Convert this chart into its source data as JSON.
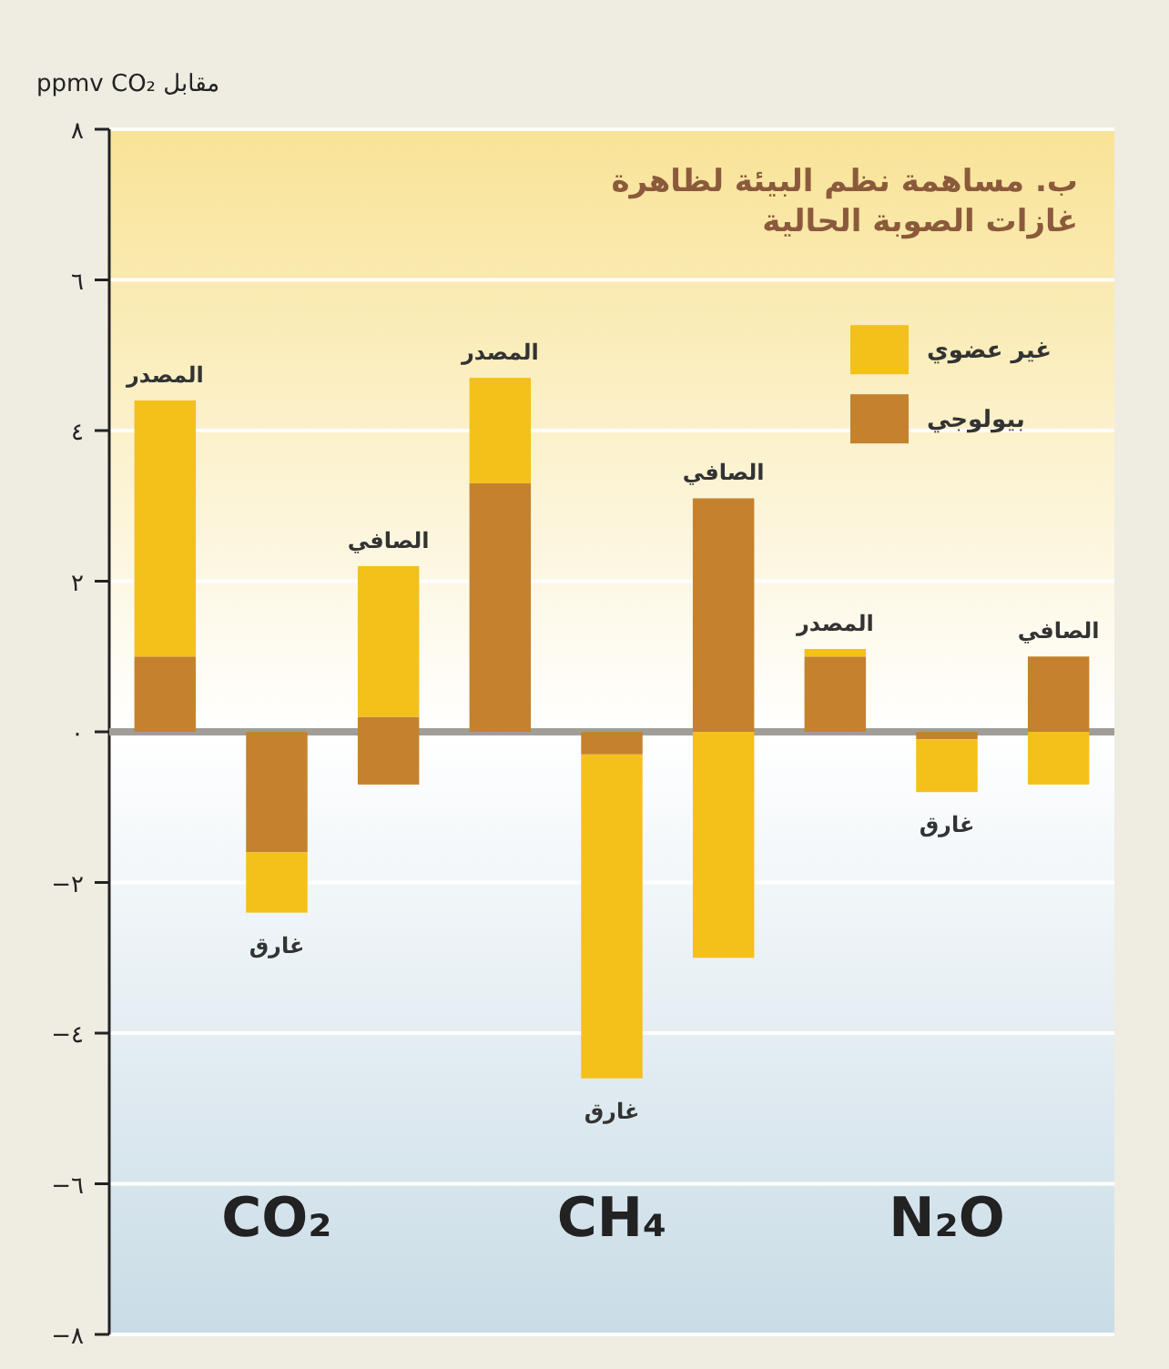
{
  "chart_data": {
    "type": "bar",
    "title": "ب. مساهمة نظم البيئة لظاهرة غازات الصوبة الحالية",
    "ylabel": "مقابل ppmv CO₂",
    "categories": [
      "المصدر",
      "غارق",
      "الصافي",
      "المصدر",
      "غارق",
      "الصافي",
      "المصدر",
      "غارق",
      "الصافي"
    ],
    "series": [
      {
        "name": "بيولوجي",
        "color": "#c4822e",
        "base": [
          0,
          0,
          -0.7,
          0,
          0,
          0,
          0,
          0,
          0
        ],
        "values": [
          1.0,
          -1.6,
          0.9,
          3.3,
          -0.3,
          3.1,
          1.0,
          -0.1,
          1.0
        ]
      },
      {
        "name": "غير عضوي",
        "color": "#f4c01a",
        "base": [
          1.0,
          -1.6,
          0.2,
          3.3,
          -0.3,
          0,
          1.0,
          -0.1,
          0
        ],
        "values": [
          3.4,
          -0.8,
          2.0,
          1.4,
          -4.3,
          -3.0,
          0.1,
          -0.7,
          -0.7
        ]
      }
    ],
    "ylim": [
      -8,
      8
    ],
    "yticks": [
      {
        "value": 8,
        "label": "٨"
      },
      {
        "value": 6,
        "label": "٦"
      },
      {
        "value": 4,
        "label": "٤"
      },
      {
        "value": 2,
        "label": "٢"
      },
      {
        "value": 0,
        "label": "٠"
      },
      {
        "value": -2,
        "label": "−٢"
      },
      {
        "value": -4,
        "label": "−٤"
      },
      {
        "value": -6,
        "label": "−٦"
      },
      {
        "value": -8,
        "label": "−٨"
      }
    ],
    "grid": "y",
    "legend": "top right",
    "ref_lines": [
      {
        "axis": "y",
        "value": 0,
        "color": "#a09e96"
      }
    ],
    "annotations": [
      "CO₂",
      "CH₄",
      "N₂O"
    ]
  }
}
